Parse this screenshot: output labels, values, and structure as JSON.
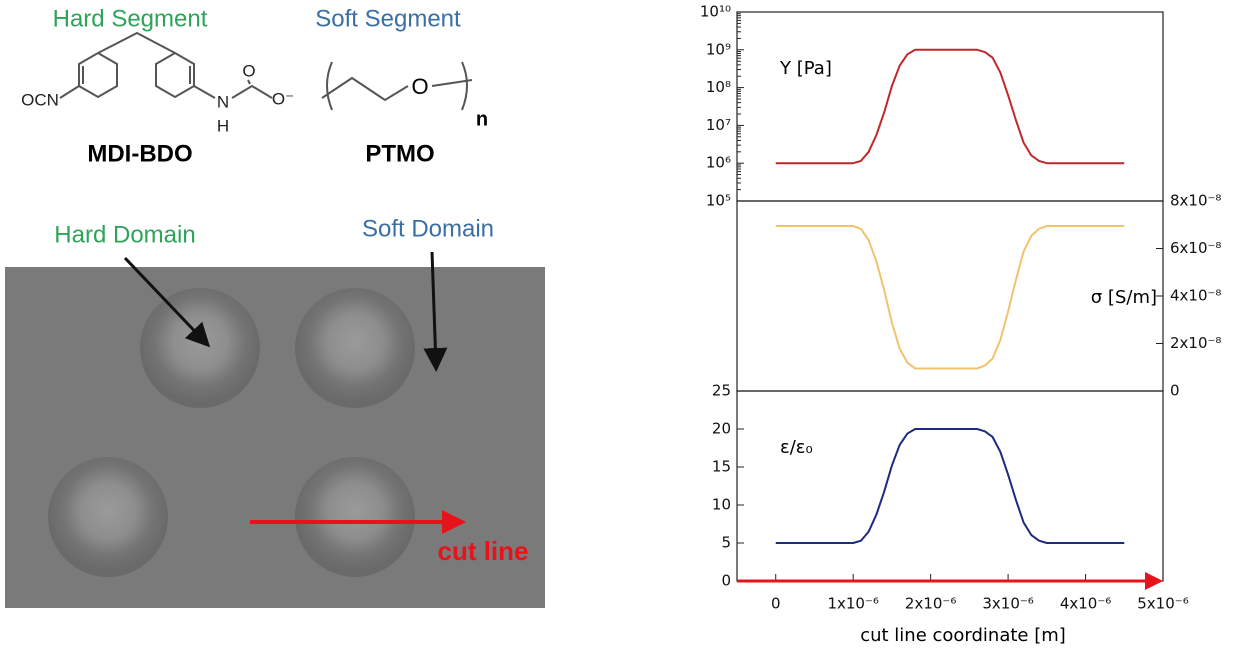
{
  "diagram": {
    "hard_segment": "Hard Segment",
    "soft_segment": "Soft Segment",
    "hard_name": "MDI-BDO",
    "soft_name": "PTMO",
    "atoms": {
      "ocn": "OCN",
      "n": "N",
      "h": "H",
      "o_carbonyl": "O",
      "o_anion": "O⁻",
      "o_ether": "O",
      "repeat": "n"
    },
    "hard_domain": "Hard Domain",
    "soft_domain": "Soft Domain",
    "cut_line": "cut line"
  },
  "chart_data": [
    {
      "type": "line",
      "ylabel": "Y [Pa]",
      "log_y": true,
      "color": "#c0282a",
      "x": [
        0,
        5e-07,
        1e-06,
        1.1e-06,
        1.2e-06,
        1.3e-06,
        1.4e-06,
        1.5e-06,
        1.6e-06,
        1.7e-06,
        1.8e-06,
        2e-06,
        2.2e-06,
        2.4e-06,
        2.6e-06,
        2.7e-06,
        2.8e-06,
        2.9e-06,
        3e-06,
        3.1e-06,
        3.2e-06,
        3.3e-06,
        3.4e-06,
        3.5e-06,
        4e-06,
        4.5e-06
      ],
      "values": [
        1000000.0,
        1000000.0,
        1000000.0,
        1150000.0,
        2000000.0,
        5600000.0,
        22000000.0,
        110000000.0,
        380000000.0,
        760000000.0,
        1000000000.0,
        1000000000.0,
        1000000000.0,
        1000000000.0,
        1000000000.0,
        870000000.0,
        620000000.0,
        250000000.0,
        63000000.0,
        14000000.0,
        3500000.0,
        1600000.0,
        1150000.0,
        1000000.0,
        1000000.0,
        1000000.0
      ],
      "xlim": [
        -5e-07,
        5e-06
      ],
      "ylim": [
        100000.0,
        10000000000.0
      ],
      "yticks": [
        {
          "value": 100000.0,
          "label": "10⁵"
        },
        {
          "value": 1000000.0,
          "label": "10⁶"
        },
        {
          "value": 10000000.0,
          "label": "10⁷"
        },
        {
          "value": 100000000.0,
          "label": "10⁸"
        },
        {
          "value": 1000000000.0,
          "label": "10⁹"
        },
        {
          "value": 10000000000.0,
          "label": "10¹⁰"
        }
      ]
    },
    {
      "type": "line",
      "ylabel": "σ [S/m]",
      "color": "#f0c36d",
      "x": [
        0,
        5e-07,
        1e-06,
        1.1e-06,
        1.2e-06,
        1.3e-06,
        1.4e-06,
        1.5e-06,
        1.6e-06,
        1.7e-06,
        1.8e-06,
        2e-06,
        2.2e-06,
        2.4e-06,
        2.6e-06,
        2.7e-06,
        2.8e-06,
        2.9e-06,
        3e-06,
        3.1e-06,
        3.2e-06,
        3.3e-06,
        3.4e-06,
        3.5e-06,
        4e-06,
        4.5e-06
      ],
      "values": [
        6.95e-08,
        6.95e-08,
        6.95e-08,
        6.83e-08,
        6.35e-08,
        5.45e-08,
        4.25e-08,
        2.87e-08,
        1.79e-08,
        1.19e-08,
        9.5e-09,
        9.5e-09,
        9.5e-09,
        9.5e-09,
        9.5e-09,
        1.07e-08,
        1.37e-08,
        2.15e-08,
        3.35e-08,
        4.67e-08,
        5.87e-08,
        6.53e-08,
        6.83e-08,
        6.95e-08,
        6.95e-08,
        6.95e-08
      ],
      "xlim": [
        -5e-07,
        5e-06
      ],
      "ylim": [
        0,
        8e-08
      ],
      "yticks": [
        0,
        {
          "value": 2e-08,
          "label": "2x10⁻⁸"
        },
        {
          "value": 4e-08,
          "label": "4x10⁻⁸"
        },
        {
          "value": 6e-08,
          "label": "6x10⁻⁸"
        },
        {
          "value": 8e-08,
          "label": "8x10⁻⁸"
        }
      ]
    },
    {
      "type": "line",
      "ylabel": "ε/ε₀",
      "xlabel": "cut line coordinate [m]",
      "color": "#1c2a80",
      "x": [
        0,
        5e-07,
        1e-06,
        1.1e-06,
        1.2e-06,
        1.3e-06,
        1.4e-06,
        1.5e-06,
        1.6e-06,
        1.7e-06,
        1.8e-06,
        2e-06,
        2.2e-06,
        2.4e-06,
        2.6e-06,
        2.7e-06,
        2.8e-06,
        2.9e-06,
        3e-06,
        3.1e-06,
        3.2e-06,
        3.3e-06,
        3.4e-06,
        3.5e-06,
        4e-06,
        4.5e-06
      ],
      "values": [
        5,
        5,
        5,
        5.3,
        6.5,
        8.75,
        11.75,
        15.2,
        17.9,
        19.4,
        20,
        20,
        20,
        20,
        20,
        19.7,
        18.95,
        17,
        14,
        10.7,
        7.7,
        6.05,
        5.3,
        5,
        5,
        5
      ],
      "xlim": [
        -5e-07,
        5e-06
      ],
      "ylim": [
        0,
        25
      ],
      "yticks": [
        0,
        5,
        10,
        15,
        20,
        25
      ],
      "xticks": [
        0,
        {
          "value": 1e-06,
          "label": "1x10⁻⁶"
        },
        {
          "value": 2e-06,
          "label": "2x10⁻⁶"
        },
        {
          "value": 3e-06,
          "label": "3x10⁻⁶"
        },
        {
          "value": 4e-06,
          "label": "4x10⁻⁶"
        },
        {
          "value": 5e-06,
          "label": "5x10⁻⁶"
        }
      ]
    }
  ]
}
